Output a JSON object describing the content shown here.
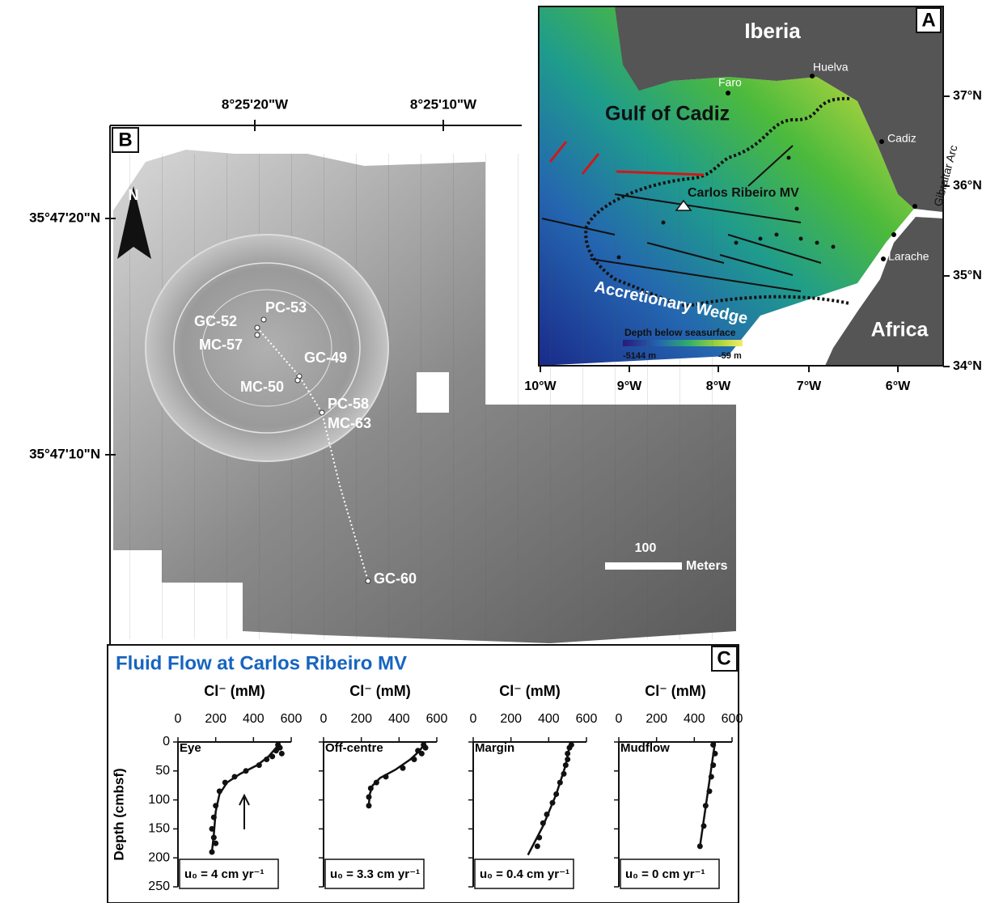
{
  "panel_a": {
    "label": "A",
    "places": {
      "iberia": "Iberia",
      "huelva": "Huelva",
      "faro": "Faro",
      "gulf": "Gulf of Cadiz",
      "cadiz": "Cadiz",
      "gibraltar": "Gibraltar Arc",
      "mv": "Carlos Ribeiro MV",
      "larache": "Larache",
      "wedge": "Accretionary Wedge",
      "africa": "Africa"
    },
    "legend_title": "Depth below seasurface",
    "legend_min": "-5144 m",
    "legend_max": "-59 m",
    "lon_labels": [
      "10°W",
      "9°W",
      "8°W",
      "7°W",
      "6°W"
    ],
    "lat_labels": [
      "37°N",
      "36°N",
      "35°N",
      "34°N"
    ]
  },
  "panel_b": {
    "label": "B",
    "north": "N",
    "lon_labels": [
      "8°25'20\"W",
      "8°25'10\"W"
    ],
    "lat_labels": [
      "35°47'20\"N",
      "35°47'10\"N"
    ],
    "samples": {
      "gc52": "GC-52",
      "pc53": "PC-53",
      "mc57": "MC-57",
      "gc49": "GC-49",
      "mc50": "MC-50",
      "pc58": "PC-58",
      "mc63": "MC-63",
      "gc60": "GC-60"
    },
    "scale_value": "100",
    "scale_unit": "Meters"
  },
  "panel_c": {
    "label": "C",
    "title": "Fluid Flow at Carlos Ribeiro MV"
  },
  "chart_data": [
    {
      "type": "scatter",
      "name": "Eye",
      "x_label": "Cl⁻ (mM)",
      "y_label": "Depth (cmbsf)",
      "annotation": "u₀ = 4 cm yr⁻¹",
      "y_inverted": true,
      "xlim": [
        0,
        600
      ],
      "xticks": [
        0,
        200,
        400,
        600
      ],
      "ylim": [
        0,
        250
      ],
      "yticks": [
        0,
        50,
        100,
        150,
        200,
        250
      ],
      "x": [
        530,
        540,
        520,
        550,
        500,
        470,
        430,
        360,
        300,
        250,
        220,
        200,
        190,
        180,
        190,
        200,
        180
      ],
      "values": [
        5,
        10,
        15,
        20,
        25,
        30,
        40,
        50,
        60,
        70,
        85,
        110,
        130,
        150,
        165,
        175,
        190
      ],
      "fit_x": [
        540,
        520,
        480,
        420,
        330,
        260,
        220,
        200,
        190,
        180
      ],
      "fit_values": [
        0,
        10,
        25,
        40,
        55,
        70,
        90,
        120,
        160,
        190
      ]
    },
    {
      "type": "scatter",
      "name": "Off-centre",
      "x_label": "Cl⁻ (mM)",
      "annotation": "u₀ = 3.3 cm yr⁻¹",
      "y_inverted": true,
      "xlim": [
        0,
        600
      ],
      "xticks": [
        0,
        200,
        400,
        600
      ],
      "ylim": [
        0,
        250
      ],
      "x": [
        530,
        540,
        500,
        520,
        480,
        420,
        330,
        280,
        250,
        240,
        240
      ],
      "values": [
        5,
        10,
        15,
        20,
        30,
        45,
        60,
        70,
        80,
        95,
        110
      ],
      "fit_x": [
        540,
        510,
        460,
        380,
        300,
        260,
        245,
        240
      ],
      "fit_values": [
        0,
        15,
        30,
        48,
        62,
        75,
        90,
        108
      ]
    },
    {
      "type": "scatter",
      "name": "Margin",
      "x_label": "Cl⁻ (mM)",
      "annotation": "u₀ = 0.4 cm yr⁻¹",
      "y_inverted": true,
      "xlim": [
        0,
        600
      ],
      "xticks": [
        0,
        200,
        400,
        600
      ],
      "ylim": [
        0,
        250
      ],
      "x": [
        520,
        510,
        500,
        500,
        490,
        480,
        460,
        440,
        420,
        390,
        370,
        350,
        340
      ],
      "values": [
        5,
        10,
        20,
        30,
        40,
        55,
        70,
        90,
        105,
        125,
        140,
        165,
        180
      ],
      "fit_x": [
        515,
        490,
        440,
        370,
        290
      ],
      "fit_values": [
        0,
        40,
        90,
        145,
        195
      ]
    },
    {
      "type": "scatter",
      "name": "Mudflow",
      "x_label": "Cl⁻ (mM)",
      "annotation": "u₀ = 0 cm yr⁻¹",
      "y_inverted": true,
      "xlim": [
        0,
        600
      ],
      "xticks": [
        0,
        200,
        400,
        600
      ],
      "ylim": [
        0,
        250
      ],
      "x": [
        500,
        510,
        500,
        490,
        480,
        460,
        450,
        430
      ],
      "values": [
        5,
        20,
        40,
        60,
        85,
        110,
        145,
        180
      ],
      "fit_x": [
        510,
        430
      ],
      "fit_values": [
        0,
        180
      ]
    }
  ]
}
